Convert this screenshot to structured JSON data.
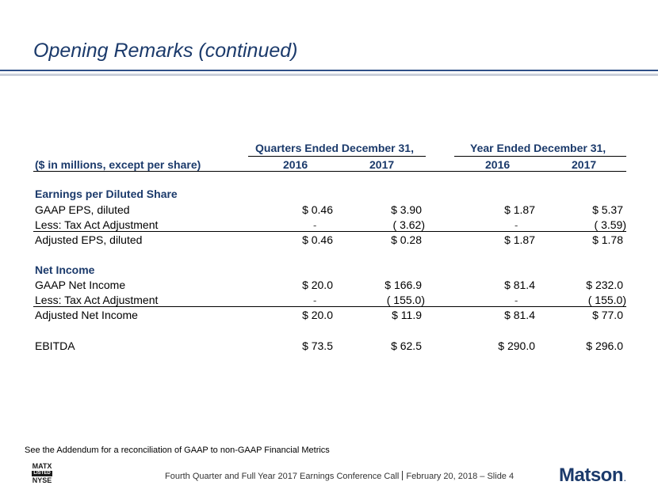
{
  "slide": {
    "title": "Opening Remarks (continued)"
  },
  "table": {
    "group_quarters": "Quarters Ended December 31,",
    "group_year": "Year Ended December 31,",
    "label_header": "($ in millions, except per share)",
    "col_q2016": "2016",
    "col_q2017": "2017",
    "col_y2016": "2016",
    "col_y2017": "2017",
    "section_eps": "Earnings per Diluted Share",
    "section_ni": "Net Income",
    "rows": [
      {
        "label": "GAAP EPS, diluted",
        "q2016": "$ 0.46",
        "q2017": "$ 3.90",
        "y2016": "$ 1.87",
        "y2017": "$ 5.37"
      },
      {
        "label": "Less: Tax Act Adjustment",
        "q2016": "-",
        "q2017": "( 3.62)",
        "y2016": "-",
        "y2017": "( 3.59)"
      },
      {
        "label": "Adjusted EPS, diluted",
        "q2016": "$ 0.46",
        "q2017": "$ 0.28",
        "y2016": "$ 1.87",
        "y2017": "$ 1.78"
      },
      {
        "label": "GAAP Net Income",
        "q2016": "$ 20.0",
        "q2017": "$ 166.9",
        "y2016": "$ 81.4",
        "y2017": "$ 232.0"
      },
      {
        "label": "Less: Tax Act Adjustment",
        "q2016": "-",
        "q2017": "( 155.0)",
        "y2016": "-",
        "y2017": "( 155.0)"
      },
      {
        "label": "Adjusted Net Income",
        "q2016": "$ 20.0",
        "q2017": "$ 11.9",
        "y2016": "$ 81.4",
        "y2017": "$ 77.0"
      },
      {
        "label": "EBITDA",
        "q2016": "$ 73.5",
        "q2017": "$ 62.5",
        "y2016": "$ 290.0",
        "y2017": "$ 296.0"
      }
    ]
  },
  "footnote": "See the Addendum for a reconciliation of GAAP to non-GAAP Financial Metrics",
  "footer": {
    "event": "Fourth Quarter and Full Year 2017 Earnings Conference Call",
    "date_slide": "February 20, 2018 – Slide 4"
  },
  "logos": {
    "nyse_top": "MATX",
    "nyse_mid": "LISTED",
    "nyse_bottom": "NYSE",
    "brand": "Matson",
    "brand_mark": "."
  },
  "colors": {
    "title": "#1b3a6b",
    "header": "#1b3a6b",
    "rule": "#2e4f87"
  }
}
